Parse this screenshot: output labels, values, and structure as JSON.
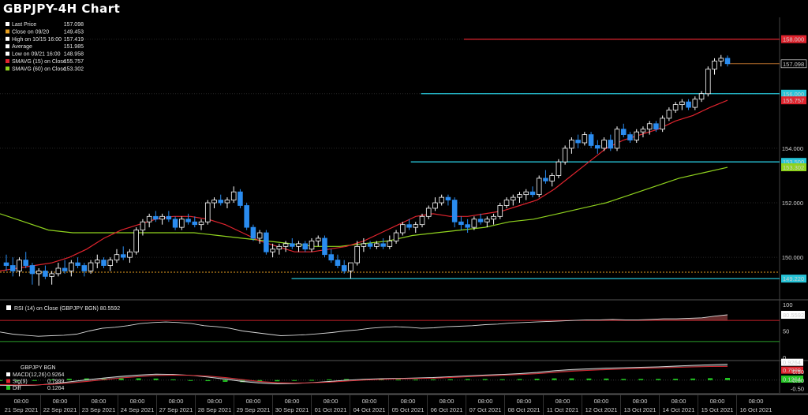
{
  "title": "GBPJPY-4H Chart",
  "colors": {
    "background": "#000000",
    "bull_candle": "#ffffff",
    "bear_candle": "#2a8cf0",
    "sma15": "#e0242e",
    "sma60": "#8fd21e",
    "support_line": "#27c4d8",
    "resistance_line": "#e0242e",
    "last_price_line": "#b06a2a",
    "close_line": "#e8a020",
    "rsi_line": "#d8d8d8",
    "rsi_upper": "#c8202a",
    "rsi_lower": "#2aa02a",
    "macd_line": "#d8d8d8",
    "signal_line": "#e0242e",
    "diff_bars": "#22c822"
  },
  "legend": {
    "items": [
      {
        "label": "Last Price",
        "value": "157.098",
        "color": "#ffffff"
      },
      {
        "label": "Close on 09/20",
        "value": "149.453",
        "color": "#e8a020"
      },
      {
        "label": "High on 10/15 16:00",
        "value": "157.419",
        "color": "#ffffff"
      },
      {
        "label": "Average",
        "value": "151.985",
        "color": "#ffffff"
      },
      {
        "label": "Low on 09/21 16:00",
        "value": "148.958",
        "color": "#ffffff"
      },
      {
        "label": "SMAVG (15)  on Close",
        "value": "155.757",
        "color": "#e0242e"
      },
      {
        "label": "SMAVG (60)  on Close",
        "value": "153.302",
        "color": "#8fd21e"
      }
    ]
  },
  "price_tags": [
    {
      "text": "158.000",
      "value": 158.0,
      "bg": "#e0242e",
      "fg": "#ffffff"
    },
    {
      "text": "157.098",
      "value": 157.098,
      "bg": "#000000",
      "fg": "#ffffff",
      "border": "#ffffff"
    },
    {
      "text": "156.000",
      "value": 156.0,
      "bg": "#27c4d8",
      "fg": "#000000"
    },
    {
      "text": "155.757",
      "value": 155.757,
      "bg": "#e0242e",
      "fg": "#ffffff"
    },
    {
      "text": "153.500",
      "value": 153.5,
      "bg": "#27c4d8",
      "fg": "#000000"
    },
    {
      "text": "153.302",
      "value": 153.302,
      "bg": "#8fd21e",
      "fg": "#000000"
    },
    {
      "text": "149.220",
      "value": 149.22,
      "bg": "#27c4d8",
      "fg": "#000000"
    }
  ],
  "rsi_panel": {
    "legend": "RSI (14)  on Close (GBPJPY BGN) 80.5592",
    "value_tag": "80.5592",
    "ticks": [
      "100",
      "50",
      "0"
    ]
  },
  "macd_panel": {
    "header": "GBPJPY BGN",
    "items": [
      {
        "label": "MACD(12,26)",
        "value": "0.9264",
        "color": "#ffffff"
      },
      {
        "label": "Sig(9)",
        "value": "0.7999",
        "color": "#e0242e"
      },
      {
        "label": "Diff",
        "value": "0.1264",
        "color": "#22c822"
      }
    ],
    "value_tags": [
      {
        "text": "0.9264",
        "bg": "#ffffff",
        "fg": "#000000"
      },
      {
        "text": "0.7999",
        "bg": "#e0242e",
        "fg": "#ffffff"
      },
      {
        "text": "0.1264",
        "bg": "#22c822",
        "fg": "#000000"
      }
    ],
    "ticks": [
      "0.50",
      "0.00",
      "-0.50"
    ]
  },
  "chart_data": {
    "type": "candlestick",
    "title": "GBPJPY-4H Chart",
    "y_ticks": [
      "158.000",
      "156.000",
      "154.000",
      "152.000",
      "150.000"
    ],
    "y_tick_values": [
      158,
      156,
      154,
      152,
      150
    ],
    "ylim": [
      148.5,
      158.8
    ],
    "x_labels": [
      {
        "time": "08:00",
        "date": "21 Sep 2021"
      },
      {
        "time": "08:00",
        "date": "22 Sep 2021"
      },
      {
        "time": "08:00",
        "date": "23 Sep 2021"
      },
      {
        "time": "08:00",
        "date": "24 Sep 2021"
      },
      {
        "time": "08:00",
        "date": "27 Sep 2021"
      },
      {
        "time": "08:00",
        "date": "28 Sep 2021"
      },
      {
        "time": "08:00",
        "date": "29 Sep 2021"
      },
      {
        "time": "08:00",
        "date": "30 Sep 2021"
      },
      {
        "time": "08:00",
        "date": "01 Oct 2021"
      },
      {
        "time": "08:00",
        "date": "04 Oct 2021"
      },
      {
        "time": "08:00",
        "date": "05 Oct 2021"
      },
      {
        "time": "08:00",
        "date": "06 Oct 2021"
      },
      {
        "time": "08:00",
        "date": "07 Oct 2021"
      },
      {
        "time": "08:00",
        "date": "08 Oct 2021"
      },
      {
        "time": "08:00",
        "date": "11 Oct 2021"
      },
      {
        "time": "08:00",
        "date": "12 Oct 2021"
      },
      {
        "time": "08:00",
        "date": "13 Oct 2021"
      },
      {
        "time": "08:00",
        "date": "14 Oct 2021"
      },
      {
        "time": "08:00",
        "date": "15 Oct 2021"
      },
      {
        "time": "08:00",
        "date": "16 Oct 2021"
      }
    ],
    "candles": [
      [
        149.8,
        150.1,
        149.5,
        149.7
      ],
      [
        149.7,
        150.0,
        149.3,
        149.5
      ],
      [
        149.5,
        150.0,
        149.3,
        149.9
      ],
      [
        149.9,
        150.2,
        149.6,
        149.7
      ],
      [
        149.7,
        149.8,
        149.0,
        149.4
      ],
      [
        149.4,
        149.6,
        148.96,
        149.5
      ],
      [
        149.5,
        149.7,
        149.2,
        149.3
      ],
      [
        149.3,
        149.5,
        149.0,
        149.4
      ],
      [
        149.4,
        149.8,
        149.3,
        149.6
      ],
      [
        149.6,
        149.9,
        149.4,
        149.5
      ],
      [
        149.5,
        149.9,
        149.3,
        149.8
      ],
      [
        149.8,
        150.0,
        149.6,
        149.7
      ],
      [
        149.7,
        149.8,
        149.3,
        149.5
      ],
      [
        149.5,
        149.9,
        149.4,
        149.8
      ],
      [
        149.8,
        150.1,
        149.6,
        149.9
      ],
      [
        149.9,
        150.0,
        149.6,
        149.7
      ],
      [
        149.7,
        150.0,
        149.5,
        149.9
      ],
      [
        149.9,
        150.3,
        149.8,
        150.1
      ],
      [
        150.1,
        150.4,
        149.9,
        150.0
      ],
      [
        150.0,
        150.3,
        149.8,
        150.2
      ],
      [
        150.2,
        151.1,
        150.1,
        151.0
      ],
      [
        151.0,
        151.4,
        150.8,
        151.3
      ],
      [
        151.3,
        151.6,
        151.1,
        151.5
      ],
      [
        151.5,
        151.7,
        151.3,
        151.4
      ],
      [
        151.4,
        151.6,
        151.2,
        151.5
      ],
      [
        151.5,
        151.7,
        151.3,
        151.4
      ],
      [
        151.4,
        151.5,
        151.0,
        151.1
      ],
      [
        151.1,
        151.5,
        151.0,
        151.4
      ],
      [
        151.4,
        151.6,
        151.2,
        151.3
      ],
      [
        151.3,
        151.5,
        151.1,
        151.2
      ],
      [
        151.2,
        151.4,
        151.0,
        151.3
      ],
      [
        151.3,
        152.1,
        151.2,
        152.0
      ],
      [
        152.0,
        152.2,
        151.8,
        152.1
      ],
      [
        152.1,
        152.3,
        151.9,
        152.0
      ],
      [
        152.0,
        152.2,
        151.8,
        152.1
      ],
      [
        152.1,
        152.6,
        152.0,
        152.4
      ],
      [
        152.4,
        152.5,
        151.8,
        151.9
      ],
      [
        151.9,
        152.0,
        151.0,
        151.1
      ],
      [
        151.1,
        151.2,
        150.6,
        150.7
      ],
      [
        150.7,
        151.0,
        150.5,
        150.9
      ],
      [
        150.9,
        151.0,
        150.1,
        150.2
      ],
      [
        150.2,
        150.5,
        150.0,
        150.3
      ],
      [
        150.3,
        150.5,
        150.1,
        150.4
      ],
      [
        150.4,
        150.6,
        150.2,
        150.5
      ],
      [
        150.5,
        150.7,
        150.3,
        150.4
      ],
      [
        150.4,
        150.6,
        150.2,
        150.5
      ],
      [
        150.5,
        150.6,
        150.2,
        150.3
      ],
      [
        150.3,
        150.7,
        150.2,
        150.6
      ],
      [
        150.6,
        150.8,
        150.4,
        150.7
      ],
      [
        150.7,
        150.8,
        150.0,
        150.1
      ],
      [
        150.1,
        150.3,
        149.8,
        149.9
      ],
      [
        149.9,
        150.1,
        149.6,
        149.7
      ],
      [
        149.7,
        149.9,
        149.4,
        149.5
      ],
      [
        149.5,
        149.8,
        149.22,
        149.8
      ],
      [
        149.8,
        150.6,
        149.7,
        150.4
      ],
      [
        150.4,
        150.7,
        150.2,
        150.5
      ],
      [
        150.5,
        150.6,
        150.3,
        150.4
      ],
      [
        150.4,
        150.6,
        150.3,
        150.5
      ],
      [
        150.5,
        150.7,
        150.3,
        150.4
      ],
      [
        150.4,
        150.8,
        150.3,
        150.6
      ],
      [
        150.6,
        151.0,
        150.5,
        150.9
      ],
      [
        150.9,
        151.3,
        150.8,
        151.2
      ],
      [
        151.2,
        151.4,
        151.0,
        151.1
      ],
      [
        151.1,
        151.3,
        150.9,
        151.2
      ],
      [
        151.2,
        151.6,
        151.1,
        151.5
      ],
      [
        151.5,
        151.9,
        151.4,
        151.8
      ],
      [
        151.8,
        152.2,
        151.7,
        152.0
      ],
      [
        152.0,
        152.3,
        151.9,
        152.2
      ],
      [
        152.2,
        152.3,
        151.9,
        152.1
      ],
      [
        152.1,
        152.2,
        151.1,
        151.3
      ],
      [
        151.3,
        151.5,
        151.0,
        151.2
      ],
      [
        151.2,
        151.4,
        150.9,
        151.1
      ],
      [
        151.1,
        151.5,
        151.0,
        151.4
      ],
      [
        151.4,
        151.6,
        151.2,
        151.3
      ],
      [
        151.3,
        151.5,
        151.1,
        151.4
      ],
      [
        151.4,
        151.6,
        151.2,
        151.5
      ],
      [
        151.5,
        152.0,
        151.4,
        151.9
      ],
      [
        151.9,
        152.2,
        151.8,
        152.1
      ],
      [
        152.1,
        152.3,
        151.9,
        152.2
      ],
      [
        152.2,
        152.4,
        152.0,
        152.3
      ],
      [
        152.3,
        152.5,
        152.1,
        152.4
      ],
      [
        152.4,
        152.6,
        152.2,
        152.3
      ],
      [
        152.3,
        153.0,
        152.2,
        152.9
      ],
      [
        152.9,
        153.2,
        152.7,
        152.8
      ],
      [
        152.8,
        153.1,
        152.6,
        153.0
      ],
      [
        153.0,
        153.6,
        152.9,
        153.5
      ],
      [
        153.5,
        154.1,
        153.4,
        154.0
      ],
      [
        154.0,
        154.4,
        153.8,
        154.3
      ],
      [
        154.3,
        154.5,
        154.0,
        154.2
      ],
      [
        154.2,
        154.6,
        154.1,
        154.5
      ],
      [
        154.5,
        154.6,
        154.0,
        154.1
      ],
      [
        154.1,
        154.3,
        153.8,
        154.0
      ],
      [
        154.0,
        154.4,
        153.9,
        154.3
      ],
      [
        154.3,
        154.5,
        153.9,
        154.0
      ],
      [
        154.0,
        154.8,
        153.9,
        154.7
      ],
      [
        154.7,
        154.9,
        154.4,
        154.5
      ],
      [
        154.5,
        154.6,
        154.2,
        154.3
      ],
      [
        154.3,
        154.7,
        154.2,
        154.6
      ],
      [
        154.6,
        154.8,
        154.4,
        154.7
      ],
      [
        154.7,
        155.0,
        154.5,
        154.9
      ],
      [
        154.9,
        155.0,
        154.6,
        154.7
      ],
      [
        154.7,
        155.2,
        154.6,
        155.1
      ],
      [
        155.1,
        155.5,
        155.0,
        155.4
      ],
      [
        155.4,
        155.7,
        155.3,
        155.6
      ],
      [
        155.6,
        155.8,
        155.4,
        155.7
      ],
      [
        155.7,
        155.8,
        155.4,
        155.5
      ],
      [
        155.5,
        155.9,
        155.4,
        155.8
      ],
      [
        155.8,
        156.1,
        155.7,
        156.0
      ],
      [
        156.0,
        157.0,
        155.9,
        156.9
      ],
      [
        156.9,
        157.3,
        156.7,
        157.2
      ],
      [
        157.2,
        157.42,
        157.0,
        157.3
      ],
      [
        157.3,
        157.4,
        157.0,
        157.1
      ]
    ],
    "sma15": [
      149.5,
      149.6,
      149.7,
      149.8,
      150.0,
      150.3,
      150.7,
      151.0,
      151.2,
      151.4,
      151.5,
      151.5,
      151.4,
      151.2,
      150.9,
      150.6,
      150.4,
      150.2,
      150.2,
      150.3,
      150.4,
      150.6,
      150.9,
      151.2,
      151.5,
      151.6,
      151.5,
      151.5,
      151.6,
      151.7,
      151.9,
      152.1,
      152.5,
      153.0,
      153.5,
      154.0,
      154.3,
      154.5,
      154.7,
      155.0,
      155.2,
      155.5,
      155.76
    ],
    "sma60": [
      151.6,
      151.3,
      151.0,
      150.9,
      150.9,
      150.9,
      150.9,
      150.9,
      150.9,
      150.8,
      150.7,
      150.6,
      150.5,
      150.4,
      150.4,
      150.5,
      150.6,
      150.8,
      150.9,
      151.0,
      151.1,
      151.3,
      151.4,
      151.6,
      151.8,
      152.0,
      152.3,
      152.6,
      152.9,
      153.1,
      153.3
    ],
    "hlines": [
      {
        "value": 158.0,
        "color": "#e0242e",
        "from_x": 0.595
      },
      {
        "value": 156.0,
        "color": "#27c4d8",
        "from_x": 0.54
      },
      {
        "value": 153.5,
        "color": "#27c4d8",
        "from_x": 0.527
      },
      {
        "value": 149.22,
        "color": "#27c4d8",
        "from_x": 0.374
      },
      {
        "value": 149.453,
        "color": "#e8a020",
        "dashed": true,
        "from_x": 0.0
      }
    ],
    "rsi": [
      48,
      44,
      42,
      40,
      41,
      42,
      44,
      50,
      55,
      57,
      60,
      64,
      66,
      67,
      66,
      64,
      60,
      58,
      55,
      50,
      47,
      44,
      41,
      42,
      43,
      45,
      47,
      50,
      52,
      55,
      57,
      58,
      57,
      55,
      56,
      58,
      59,
      60,
      62,
      63,
      65,
      66,
      67,
      68,
      69,
      70,
      71,
      71,
      72,
      71,
      71,
      72,
      73,
      73,
      74,
      75,
      78,
      80.56
    ],
    "rsi_ylim": [
      0,
      100
    ],
    "rsi_levels": [
      70,
      30
    ],
    "macd": [
      -0.3,
      -0.32,
      -0.3,
      -0.22,
      -0.1,
      0.02,
      0.12,
      0.22,
      0.3,
      0.35,
      0.33,
      0.28,
      0.18,
      0.05,
      -0.08,
      -0.18,
      -0.22,
      -0.2,
      -0.15,
      -0.08,
      0.0,
      0.05,
      0.08,
      0.1,
      0.12,
      0.15,
      0.2,
      0.25,
      0.3,
      0.33,
      0.38,
      0.45,
      0.55,
      0.62,
      0.66,
      0.7,
      0.72,
      0.75,
      0.78,
      0.82,
      0.86,
      0.9,
      0.9264
    ],
    "signal": [
      -0.26,
      -0.28,
      -0.28,
      -0.25,
      -0.18,
      -0.08,
      0.02,
      0.12,
      0.2,
      0.26,
      0.29,
      0.28,
      0.24,
      0.15,
      0.04,
      -0.08,
      -0.15,
      -0.17,
      -0.16,
      -0.12,
      -0.06,
      0.0,
      0.04,
      0.07,
      0.09,
      0.11,
      0.15,
      0.19,
      0.24,
      0.28,
      0.32,
      0.37,
      0.45,
      0.52,
      0.57,
      0.61,
      0.65,
      0.68,
      0.71,
      0.74,
      0.77,
      0.79,
      0.7999
    ],
    "diff": [
      -0.04,
      -0.04,
      -0.02,
      0.03,
      0.08,
      0.1,
      0.1,
      0.1,
      0.1,
      0.09,
      0.04,
      0.0,
      -0.06,
      -0.1,
      -0.12,
      -0.1,
      -0.07,
      -0.03,
      0.01,
      0.04,
      0.06,
      0.05,
      0.04,
      0.03,
      0.03,
      0.04,
      0.05,
      0.06,
      0.06,
      0.05,
      0.06,
      0.08,
      0.1,
      0.1,
      0.09,
      0.09,
      0.07,
      0.07,
      0.07,
      0.08,
      0.09,
      0.11,
      0.1264
    ],
    "macd_ylim": [
      -0.75,
      1.05
    ]
  }
}
